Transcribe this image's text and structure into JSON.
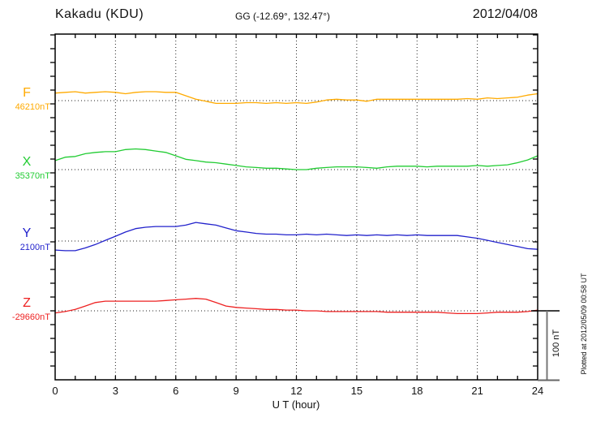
{
  "header": {
    "station": "Kakadu (KDU)",
    "coords": "GG (-12.69°, 132.47°)",
    "date": "2012/04/08"
  },
  "scale_bar": {
    "label": "100 nT"
  },
  "plotted_note": "Plotted at 2012/05/09 00:58 UT",
  "chart_data": {
    "type": "line",
    "title": "Kakadu (KDU)",
    "subtitle": "GG (-12.69°, 132.47°)",
    "date": "2012/04/08",
    "xlabel": "U T (hour)",
    "x_ticks": [
      "0",
      "3",
      "6",
      "9",
      "12",
      "15",
      "18",
      "21",
      "24"
    ],
    "x_range_hours": [
      0,
      24
    ],
    "sample_step_hours": 0.5,
    "grid": "dotted vertical lines every 3 h; dotted horizontal baseline per series; minor ticks every 1 h and every 20 nT",
    "scale_bar_nT": 100,
    "axis_tick_nT": 20,
    "series": [
      {
        "name": "F",
        "baseline_label": "46210nT",
        "baseline_nT": 46210,
        "color": "#FFAA00",
        "offsets_nT": [
          11,
          12,
          13,
          11,
          12,
          13,
          12,
          10,
          12,
          13,
          13,
          12,
          12,
          7,
          2,
          -1,
          -4,
          -4,
          -4,
          -3,
          -3,
          -4,
          -3,
          -4,
          -3,
          -4,
          -2,
          1,
          2,
          1,
          1,
          -1,
          2,
          2,
          2,
          2,
          2,
          2,
          2,
          2,
          2,
          3,
          2,
          4,
          3,
          4,
          5,
          8,
          10
        ]
      },
      {
        "name": "X",
        "baseline_label": "35370nT",
        "baseline_nT": 35370,
        "color": "#22CC33",
        "offsets_nT": [
          13,
          18,
          19,
          23,
          25,
          26,
          26,
          29,
          30,
          29,
          27,
          25,
          20,
          15,
          13,
          11,
          10,
          8,
          6,
          4,
          3,
          2,
          2,
          1,
          0,
          0,
          2,
          3,
          4,
          4,
          4,
          3,
          2,
          4,
          5,
          5,
          5,
          4,
          5,
          5,
          5,
          5,
          6,
          5,
          6,
          7,
          10,
          14,
          20
        ]
      },
      {
        "name": "Y",
        "baseline_label": "2100nT",
        "baseline_nT": 2100,
        "color": "#2222CC",
        "offsets_nT": [
          -13,
          -14,
          -14,
          -10,
          -5,
          1,
          7,
          13,
          18,
          20,
          21,
          21,
          21,
          23,
          27,
          25,
          23,
          19,
          15,
          13,
          11,
          10,
          10,
          9,
          9,
          10,
          9,
          10,
          9,
          8,
          9,
          8,
          9,
          8,
          9,
          8,
          9,
          8,
          8,
          8,
          8,
          6,
          4,
          1,
          -2,
          -5,
          -8,
          -11,
          -12
        ]
      },
      {
        "name": "Z",
        "baseline_label": "-29660nT",
        "baseline_nT": -29660,
        "color": "#EE2222",
        "offsets_nT": [
          -3,
          -1,
          2,
          7,
          12,
          14,
          14,
          14,
          14,
          14,
          14,
          15,
          16,
          17,
          18,
          17,
          12,
          7,
          5,
          4,
          3,
          2,
          2,
          1,
          1,
          0,
          0,
          -1,
          -1,
          -1,
          -1,
          -1,
          -1,
          -2,
          -2,
          -2,
          -2,
          -2,
          -2,
          -3,
          -4,
          -4,
          -4,
          -3,
          -2,
          -2,
          -2,
          -1,
          1
        ]
      }
    ]
  }
}
